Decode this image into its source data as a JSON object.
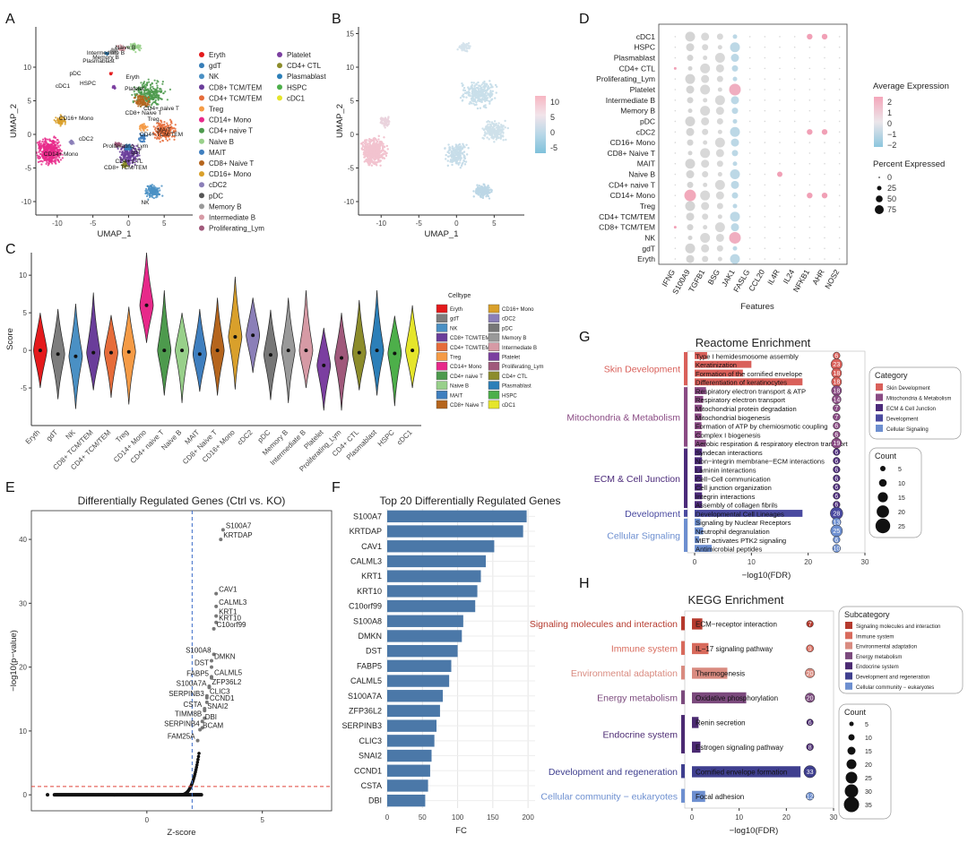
{
  "panels": {
    "A": "A",
    "B": "B",
    "C": "C",
    "D": "D",
    "E": "E",
    "F": "F",
    "G": "G",
    "H": "H"
  },
  "chart_data": [
    {
      "id": "A",
      "type": "scatter",
      "xlabel": "UMAP_1",
      "ylabel": "UMAP_2",
      "xticks": [
        "-10",
        "-5",
        "0",
        "5"
      ],
      "yticks": [
        "10",
        "5",
        "0",
        "-5",
        "-10"
      ],
      "legend": [
        {
          "name": "Eryth",
          "color": "#e41a1c"
        },
        {
          "name": "gdT",
          "color": "#377eb8"
        },
        {
          "name": "NK",
          "color": "#4a90c4"
        },
        {
          "name": "CD8+ TCM/TEM",
          "color": "#6a3d9a"
        },
        {
          "name": "CD4+ TCM/TEM",
          "color": "#e66c3a"
        },
        {
          "name": "Treg",
          "color": "#f59b46"
        },
        {
          "name": "CD14+ Mono",
          "color": "#e7298a"
        },
        {
          "name": "CD4+ naive T",
          "color": "#4d9a4d"
        },
        {
          "name": "Naive B",
          "color": "#98d08a"
        },
        {
          "name": "MAIT",
          "color": "#3f7fbf"
        },
        {
          "name": "CD8+ Naive T",
          "color": "#b5651d"
        },
        {
          "name": "CD16+ Mono",
          "color": "#d9a02b"
        },
        {
          "name": "cDC2",
          "color": "#8b7fb8"
        },
        {
          "name": "pDC",
          "color": "#555555"
        },
        {
          "name": "Memory B",
          "color": "#999999"
        },
        {
          "name": "Intermediate B",
          "color": "#d69aa5"
        },
        {
          "name": "Proliferating_Lym",
          "color": "#a0597b"
        },
        {
          "name": "Platelet",
          "color": "#7b3fa0"
        },
        {
          "name": "CD4+ CTL",
          "color": "#8c8c2b"
        },
        {
          "name": "Plasmablast",
          "color": "#2c7fb8"
        },
        {
          "name": "HSPC",
          "color": "#4daf4a"
        },
        {
          "name": "cDC1",
          "color": "#e5e52b"
        }
      ],
      "cluster_labels": [
        "Naive B",
        "Intermediate B",
        "Memory B",
        "Plasmablast",
        "Eryth",
        "pDC",
        "HSPC",
        "cDC1",
        "Platelet",
        "CD4+ naive T",
        "CD8+ Naive T",
        "CD16+ Mono",
        "cDC2",
        "Treg",
        "CD4+ TCM/TEM",
        "MAIT",
        "CD14+ Mono",
        "Proliferating_Lym",
        "gdT",
        "CD4+ CTL",
        "CD8+ TCM/TEM",
        "NK"
      ]
    },
    {
      "id": "B",
      "type": "scatter",
      "xlabel": "UMAP_1",
      "ylabel": "UMAP_2",
      "xticks": [
        "-10",
        "-5",
        "0",
        "5"
      ],
      "yticks": [
        "15",
        "10",
        "5",
        "0",
        "-5",
        "-10"
      ],
      "colorbar": {
        "ticks": [
          "10",
          "5",
          "0",
          "-5"
        ],
        "colors": [
          "#f7b6c2",
          "#f2e4ea",
          "#b9d8e8",
          "#7fc1db"
        ]
      }
    },
    {
      "id": "C",
      "type": "violin",
      "ylabel": "Score",
      "legend_title": "Celltype",
      "ylim": [
        -10,
        13
      ],
      "yticks": [
        "10",
        "5",
        "0",
        "-5"
      ],
      "categories": [
        "Eryth",
        "gdT",
        "NK",
        "CD8+ TCM/TEM",
        "CD4+ TCM/TEM",
        "Treg",
        "CD14+ Mono",
        "CD4+ naive T",
        "Naive B",
        "MAIT",
        "CD8+ Naive T",
        "CD16+ Mono",
        "cDC2",
        "pDC",
        "Memory B",
        "Intermediate B",
        "Platelet",
        "Proliferating_Lym",
        "CD4+ CTL",
        "Plasmablast",
        "HSPC",
        "cDC1"
      ],
      "medians": [
        0,
        -0.5,
        -0.8,
        -0.3,
        -0.3,
        -0.2,
        6,
        0,
        0,
        -0.5,
        0,
        1.8,
        2,
        -0.6,
        0,
        0,
        -2,
        -1,
        -0.3,
        0,
        -0.4,
        0
      ],
      "colors": [
        "#e41a1c",
        "#7d7d7d",
        "#4a90c4",
        "#6a3d9a",
        "#e66c3a",
        "#f59b46",
        "#e7298a",
        "#4d9a4d",
        "#98d08a",
        "#3f7fbf",
        "#b5651d",
        "#d9a02b",
        "#8b7fb8",
        "#777777",
        "#999999",
        "#d69aa5",
        "#7b3fa0",
        "#a0597b",
        "#8c8c2b",
        "#2c7fb8",
        "#4daf4a",
        "#e5e52b"
      ],
      "legend_order": [
        "Eryth",
        "gdT",
        "NK",
        "CD8+ TCM/TEM",
        "CD4+ TCM/TEM",
        "Treg",
        "CD14+ Mono",
        "CD4+ naive T",
        "Naive B",
        "MAIT",
        "CD8+ Naive T",
        "CD16+ Mono",
        "cDC2",
        "pDC",
        "Memory B",
        "Intermediate B",
        "Platelet",
        "Proliferating_Lym",
        "CD4+ CTL",
        "Plasmablast",
        "HSPC",
        "cDC1"
      ]
    },
    {
      "id": "D",
      "type": "dot",
      "xlabel": "Features",
      "rows": [
        "cDC1",
        "HSPC",
        "Plasmablast",
        "CD4+ CTL",
        "Proliferating_Lym",
        "Platelet",
        "Intermediate B",
        "Memory B",
        "pDC",
        "cDC2",
        "CD16+ Mono",
        "CD8+ Naive T",
        "MAIT",
        "Naive B",
        "CD4+ naive T",
        "CD14+ Mono",
        "Treg",
        "CD4+ TCM/TEM",
        "CD8+ TCM/TEM",
        "NK",
        "gdT",
        "Eryth"
      ],
      "features": [
        "IFNG",
        "S100A9",
        "TGFB1",
        "BSG",
        "JAK1",
        "FASLG",
        "CCL20",
        "IL4R",
        "IL24",
        "NFKB1",
        "AHR",
        "NOS2"
      ],
      "legend_expr_title": "Average Expression",
      "legend_expr_ticks": [
        "2",
        "1",
        "0",
        "−1",
        "−2"
      ],
      "legend_pct_title": "Percent Expressed",
      "legend_pct_ticks": [
        "0",
        "25",
        "50",
        "75"
      ]
    },
    {
      "id": "E",
      "type": "scatter",
      "title": "Differentially Regulated Genes (Ctrl vs. KO)",
      "xlabel": "Z-score",
      "ylabel": "−log10(p−value)",
      "xticks": [
        "0",
        "5"
      ],
      "yticks": [
        "0",
        "10",
        "20",
        "30",
        "40"
      ],
      "labels": [
        {
          "g": "S100A7",
          "x": 3.3,
          "y": 41.5
        },
        {
          "g": "KRTDAP",
          "x": 3.2,
          "y": 40
        },
        {
          "g": "CAV1",
          "x": 3.0,
          "y": 31.5
        },
        {
          "g": "CALML3",
          "x": 3.0,
          "y": 29.5
        },
        {
          "g": "KRT1",
          "x": 3.0,
          "y": 28
        },
        {
          "g": "KRT10",
          "x": 3.0,
          "y": 27
        },
        {
          "g": "C10orf99",
          "x": 2.9,
          "y": 26
        },
        {
          "g": "S100A8",
          "x": 2.9,
          "y": 22
        },
        {
          "g": "DMKN",
          "x": 2.8,
          "y": 21
        },
        {
          "g": "DST",
          "x": 2.8,
          "y": 20
        },
        {
          "g": "CALML5",
          "x": 2.8,
          "y": 18.5
        },
        {
          "g": "FABP5",
          "x": 2.8,
          "y": 18.3
        },
        {
          "g": "ZFP36L2",
          "x": 2.7,
          "y": 17
        },
        {
          "g": "S100A7A",
          "x": 2.7,
          "y": 16.8
        },
        {
          "g": "CLIC3",
          "x": 2.6,
          "y": 15.5
        },
        {
          "g": "SERPINB3",
          "x": 2.6,
          "y": 15.2
        },
        {
          "g": "CCND1",
          "x": 2.6,
          "y": 14.5
        },
        {
          "g": "CSTA",
          "x": 2.5,
          "y": 13.5
        },
        {
          "g": "SNAI2",
          "x": 2.5,
          "y": 13.2
        },
        {
          "g": "TIMM8B",
          "x": 2.5,
          "y": 12
        },
        {
          "g": "DBI",
          "x": 2.4,
          "y": 11.5
        },
        {
          "g": "SERPINB4",
          "x": 2.4,
          "y": 10.5
        },
        {
          "g": "BCAM",
          "x": 2.3,
          "y": 10.2
        },
        {
          "g": "FAM25A",
          "x": 2.2,
          "y": 8.5
        }
      ]
    },
    {
      "id": "F",
      "type": "bar",
      "orientation": "horizontal",
      "title": "Top 20 Differentially Regulated Genes",
      "xlabel": "FC",
      "xlim": [
        0,
        210
      ],
      "xticks": [
        "0",
        "50",
        "100",
        "150",
        "200"
      ],
      "categories": [
        "S100A7",
        "KRTDAP",
        "CAV1",
        "CALML3",
        "KRT1",
        "KRT10",
        "C10orf99",
        "S100A8",
        "DMKN",
        "DST",
        "FABP5",
        "CALML5",
        "S100A7A",
        "ZFP36L2",
        "SERPINB3",
        "CLIC3",
        "SNAI2",
        "CCND1",
        "CSTA",
        "DBI"
      ],
      "values": [
        198,
        193,
        152,
        140,
        133,
        128,
        125,
        108,
        106,
        100,
        91,
        88,
        79,
        75,
        70,
        67,
        63,
        61,
        58,
        54
      ],
      "color": "#4b78a8"
    },
    {
      "id": "G",
      "type": "bar",
      "orientation": "horizontal",
      "title": "Reactome Enrichment",
      "xlabel": "−log10(FDR)",
      "xlim": [
        0,
        30
      ],
      "xticks": [
        "0",
        "10",
        "20",
        "30"
      ],
      "legend_title": "Category",
      "count_title": "Count",
      "count_ticks": [
        "5",
        "10",
        "15",
        "20",
        "25"
      ],
      "groups": [
        {
          "name": "Skin Development",
          "color": "#d9605a"
        },
        {
          "name": "Mitochondria & Metabolism",
          "color": "#8a4b84"
        },
        {
          "name": "ECM & Cell Junction",
          "color": "#4b2a7a"
        },
        {
          "name": "Development",
          "color": "#4a4aa0"
        },
        {
          "name": "Cellular Signaling",
          "color": "#6d8fd0"
        }
      ],
      "legend": [
        "Skin Development",
        "Mitochondria & Metabolism",
        "ECM & Cell Junction",
        "Development",
        "Cellular Signaling"
      ],
      "terms": [
        {
          "t": "Type I hemidesmosome assembly",
          "v": 2.2,
          "c": 6,
          "g": 0
        },
        {
          "t": "Keratinization",
          "v": 10,
          "c": 23,
          "g": 0
        },
        {
          "t": "Formation of the cornified envelope",
          "v": 8.5,
          "c": 18,
          "g": 0
        },
        {
          "t": "Differentiation of keratinocytes",
          "v": 19,
          "c": 18,
          "g": 0
        },
        {
          "t": "Respiratory electron transport & ATP",
          "v": 2,
          "c": 18,
          "g": 1
        },
        {
          "t": "Respiratory electron transport",
          "v": 1.5,
          "c": 14,
          "g": 1
        },
        {
          "t": "Mitochondrial protein degradation",
          "v": 1.3,
          "c": 7,
          "g": 1
        },
        {
          "t": "Mitochondrial biogenesis",
          "v": 1.2,
          "c": 7,
          "g": 1
        },
        {
          "t": "Formation of ATP by chemiosmotic coupling",
          "v": 1.2,
          "c": 6,
          "g": 1
        },
        {
          "t": "Complex I biogenesis",
          "v": 1.2,
          "c": 6,
          "g": 1
        },
        {
          "t": "Aerobic respiration & respiratory electron transport",
          "v": 2,
          "c": 19,
          "g": 1
        },
        {
          "t": "Syndecan interactions",
          "v": 1.3,
          "c": 6,
          "g": 2
        },
        {
          "t": "Non−integrin membrane−ECM interactions",
          "v": 1.3,
          "c": 6,
          "g": 2
        },
        {
          "t": "Laminin interactions",
          "v": 1.3,
          "c": 6,
          "g": 2
        },
        {
          "t": "Cell−Cell communication",
          "v": 1.3,
          "c": 6,
          "g": 2
        },
        {
          "t": "Cell junction organization",
          "v": 1.3,
          "c": 6,
          "g": 2
        },
        {
          "t": "Integrin interactions",
          "v": 1.3,
          "c": 6,
          "g": 2
        },
        {
          "t": "Assembly of collagen fibrils",
          "v": 1.3,
          "c": 6,
          "g": 2
        },
        {
          "t": "Developmental Cell Lineages",
          "v": 19,
          "c": 28,
          "g": 3
        },
        {
          "t": "Signaling by Nuclear Receptors",
          "v": 1,
          "c": 13,
          "g": 4
        },
        {
          "t": "Neutrophil degranulation",
          "v": 1.5,
          "c": 25,
          "g": 4
        },
        {
          "t": "MET activates PTK2 signaling",
          "v": 0.8,
          "c": 6,
          "g": 4
        },
        {
          "t": "Antimicrobial peptides",
          "v": 3,
          "c": 10,
          "g": 4
        }
      ]
    },
    {
      "id": "H",
      "type": "bar",
      "orientation": "horizontal",
      "title": "KEGG Enrichment",
      "xlabel": "−log10(FDR)",
      "xlim": [
        0,
        30
      ],
      "xticks": [
        "0",
        "10",
        "20",
        "30"
      ],
      "legend_title": "Subcategory",
      "count_title": "Count",
      "count_ticks": [
        "5",
        "10",
        "15",
        "20",
        "25",
        "30",
        "35"
      ],
      "groups": [
        {
          "name": "Signaling molecules and interaction",
          "color": "#b53a2e"
        },
        {
          "name": "Immune system",
          "color": "#d86a5c"
        },
        {
          "name": "Environmental adaptation",
          "color": "#d98b80"
        },
        {
          "name": "Energy metabolism",
          "color": "#7b4a7d"
        },
        {
          "name": "Endocrine system",
          "color": "#4b2a72"
        },
        {
          "name": "Development and regeneration",
          "color": "#3f3f8f"
        },
        {
          "name": "Cellular community − eukaryotes",
          "color": "#6d8fd0"
        }
      ],
      "terms": [
        {
          "t": "ECM−receptor interaction",
          "v": 2.2,
          "c": 7,
          "g": 0
        },
        {
          "t": "IL−17 signaling pathway",
          "v": 3.5,
          "c": 9,
          "g": 1
        },
        {
          "t": "Thermogenesis",
          "v": 7.5,
          "c": 20,
          "g": 2
        },
        {
          "t": "Oxidative phosphorylation",
          "v": 11.5,
          "c": 20,
          "g": 3
        },
        {
          "t": "Renin secretion",
          "v": 1.4,
          "c": 6,
          "g": 4
        },
        {
          "t": "Estrogen signaling pathway",
          "v": 1.8,
          "c": 8,
          "g": 4
        },
        {
          "t": "Cornified envelope formation",
          "v": 23,
          "c": 33,
          "g": 5
        },
        {
          "t": "Focal adhesion",
          "v": 2.8,
          "c": 12,
          "g": 6
        }
      ]
    }
  ]
}
